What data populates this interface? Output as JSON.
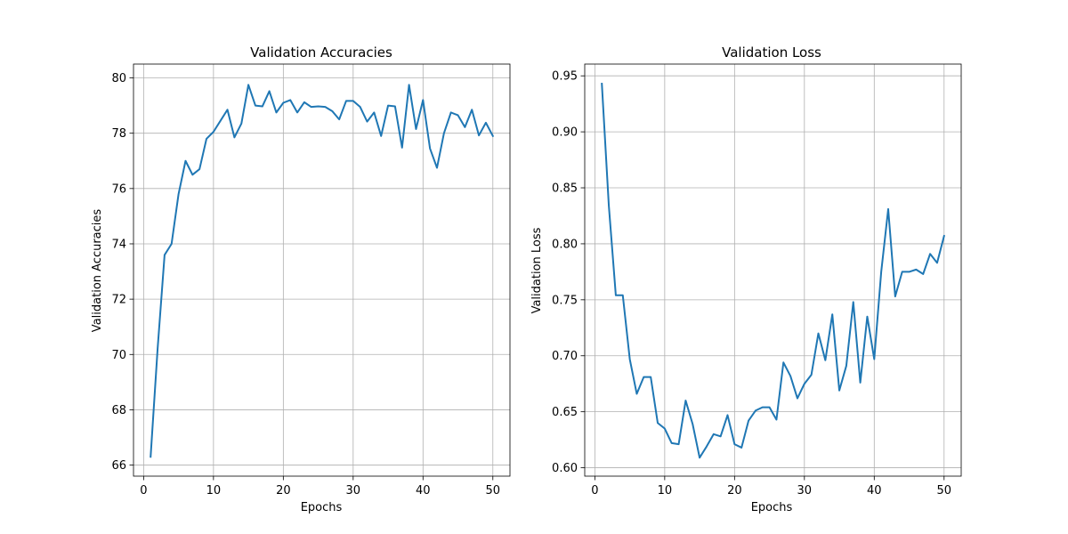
{
  "chart_data": [
    {
      "type": "line",
      "title": "Validation Accuracies",
      "xlabel": "Epochs",
      "ylabel": "Validation Accuracies",
      "xlim": [
        -1.45,
        52.45
      ],
      "ylim": [
        65.6,
        80.5
      ],
      "xticks": [
        0,
        10,
        20,
        30,
        40,
        50
      ],
      "yticks": [
        66,
        68,
        70,
        72,
        74,
        76,
        78,
        80
      ],
      "grid": true,
      "line_color": "#1f77b4",
      "x": [
        1,
        2,
        3,
        4,
        5,
        6,
        7,
        8,
        9,
        10,
        11,
        12,
        13,
        14,
        15,
        16,
        17,
        18,
        19,
        20,
        21,
        22,
        23,
        24,
        25,
        26,
        27,
        28,
        29,
        30,
        31,
        32,
        33,
        34,
        35,
        36,
        37,
        38,
        39,
        40,
        41,
        42,
        43,
        44,
        45,
        46,
        47,
        48,
        49,
        50
      ],
      "values": [
        66.3,
        70.2,
        73.6,
        74.0,
        75.8,
        77.0,
        76.5,
        76.7,
        77.8,
        78.05,
        78.45,
        78.85,
        77.85,
        78.35,
        79.75,
        79.0,
        78.97,
        79.52,
        78.75,
        79.1,
        79.2,
        78.75,
        79.12,
        78.95,
        78.97,
        78.95,
        78.8,
        78.5,
        79.17,
        79.17,
        78.95,
        78.42,
        78.75,
        77.9,
        79.0,
        78.97,
        77.48,
        79.75,
        78.15,
        79.2,
        77.45,
        76.75,
        78.0,
        78.75,
        78.65,
        78.22,
        78.85,
        77.92,
        78.38,
        77.9
      ]
    },
    {
      "type": "line",
      "title": "Validation Loss",
      "xlabel": "Epochs",
      "ylabel": "Validation Loss",
      "xlim": [
        -1.45,
        52.45
      ],
      "ylim": [
        0.5925,
        0.9605
      ],
      "xticks": [
        0,
        10,
        20,
        30,
        40,
        50
      ],
      "yticks": [
        0.6,
        0.65,
        0.7,
        0.75,
        0.8,
        0.85,
        0.9,
        0.95
      ],
      "ytick_labels": [
        "0.60",
        "0.65",
        "0.70",
        "0.75",
        "0.80",
        "0.85",
        "0.90",
        "0.95"
      ],
      "grid": true,
      "line_color": "#1f77b4",
      "x": [
        1,
        2,
        3,
        4,
        5,
        6,
        7,
        8,
        9,
        10,
        11,
        12,
        13,
        14,
        15,
        16,
        17,
        18,
        19,
        20,
        21,
        22,
        23,
        24,
        25,
        26,
        27,
        28,
        29,
        30,
        31,
        32,
        33,
        34,
        35,
        36,
        37,
        38,
        39,
        40,
        41,
        42,
        43,
        44,
        45,
        46,
        47,
        48,
        49,
        50
      ],
      "values": [
        0.943,
        0.834,
        0.754,
        0.754,
        0.697,
        0.666,
        0.681,
        0.681,
        0.64,
        0.635,
        0.622,
        0.621,
        0.66,
        0.639,
        0.609,
        0.619,
        0.63,
        0.628,
        0.647,
        0.621,
        0.618,
        0.642,
        0.651,
        0.654,
        0.654,
        0.643,
        0.694,
        0.682,
        0.662,
        0.675,
        0.683,
        0.72,
        0.696,
        0.737,
        0.669,
        0.691,
        0.748,
        0.676,
        0.735,
        0.697,
        0.775,
        0.831,
        0.753,
        0.775,
        0.775,
        0.777,
        0.773,
        0.791,
        0.783,
        0.807
      ]
    }
  ]
}
